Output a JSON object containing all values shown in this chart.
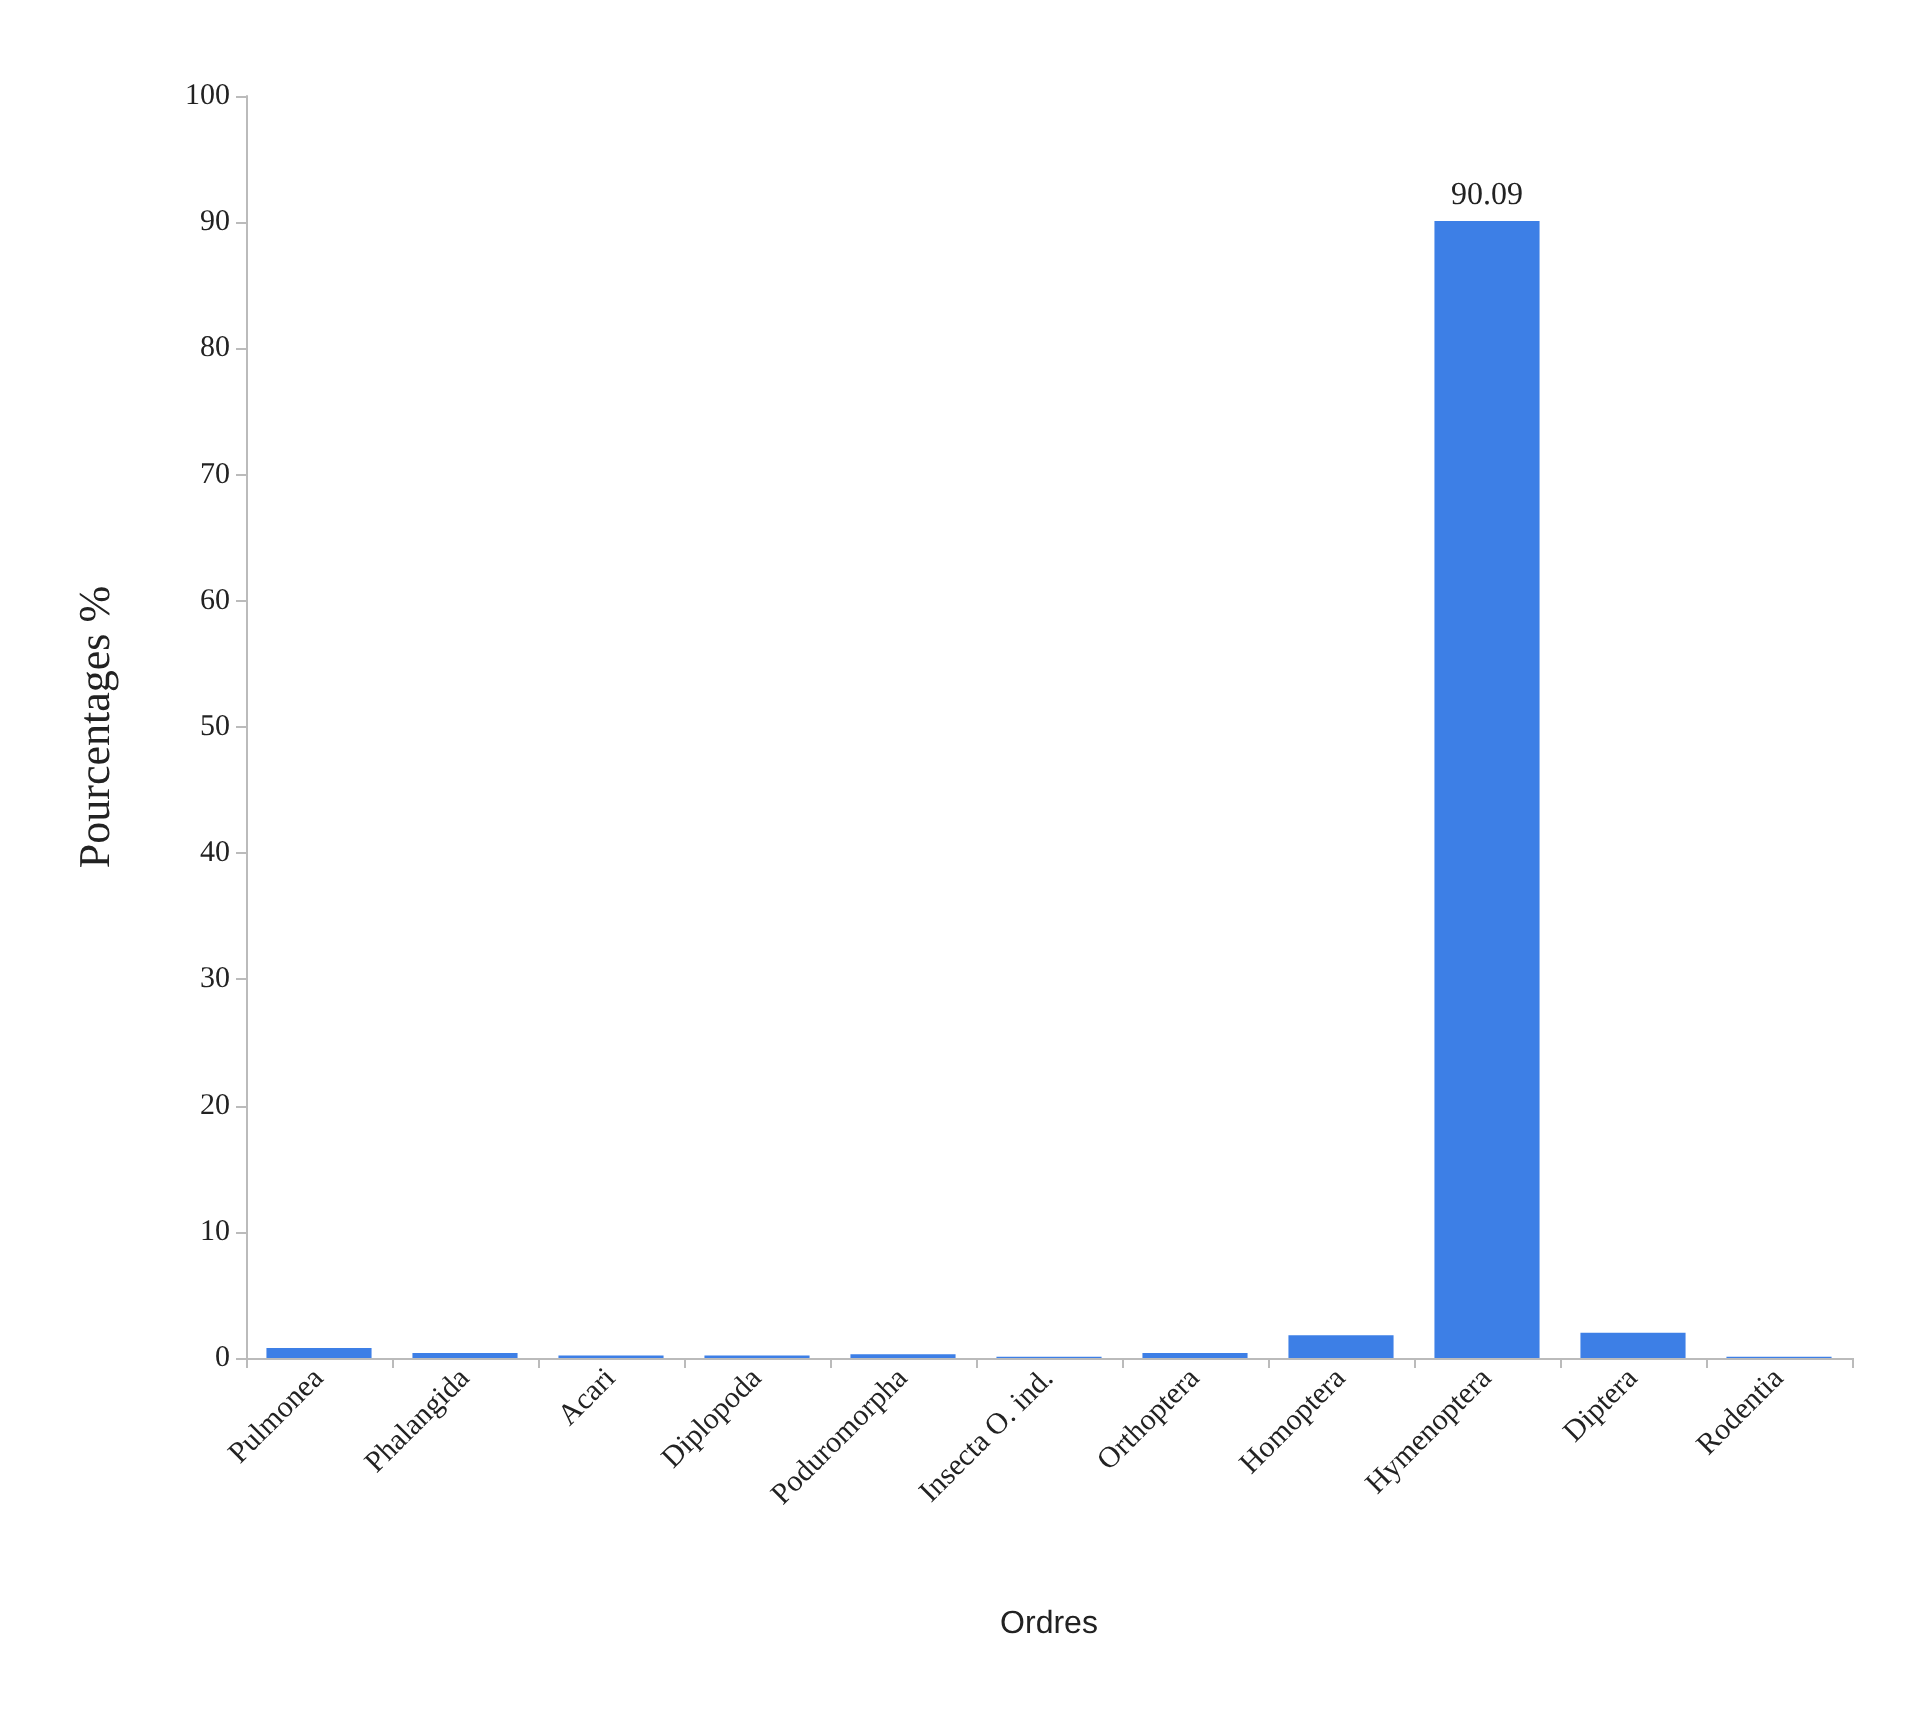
{
  "chart_data": {
    "type": "bar",
    "xlabel": "Ordres",
    "ylabel": "Pourcentages %",
    "categories": [
      "Pulmonea",
      "Phalangida",
      "Acari",
      "Diplopoda",
      "Poduromorpha",
      "Insecta O. ind.",
      "Orthoptera",
      "Homoptera",
      "Hymenoptera",
      "Diptera",
      "Rodentia"
    ],
    "values": [
      0.8,
      0.4,
      0.2,
      0.2,
      0.3,
      0.1,
      0.4,
      1.8,
      90.09,
      2,
      0.1
    ],
    "value_labels": [
      null,
      null,
      null,
      null,
      null,
      null,
      null,
      null,
      "90.09",
      null,
      null
    ],
    "color": "#3d7fe6",
    "ylim": [
      0,
      100
    ],
    "yticks": [
      0,
      10,
      20,
      30,
      40,
      50,
      60,
      70,
      80,
      90,
      100
    ],
    "grid": false
  }
}
